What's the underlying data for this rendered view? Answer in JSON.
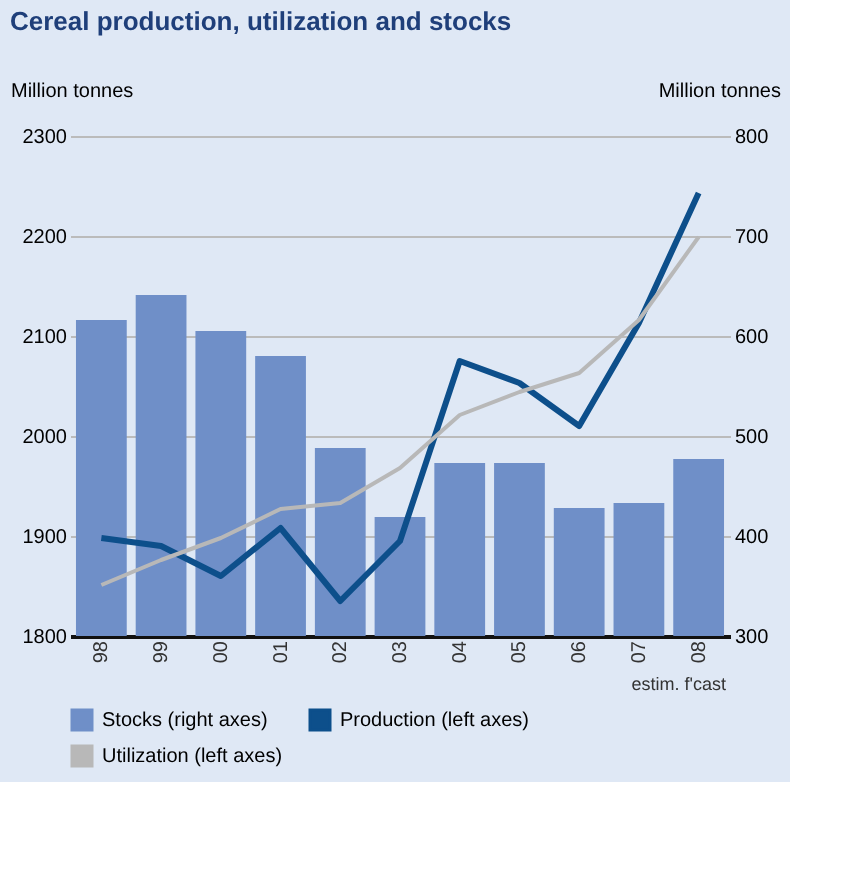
{
  "chart_data": {
    "type": "bar",
    "title": "Cereal production, utilization and stocks",
    "ylabel": "Million tonnes",
    "y2label": "Million tonnes",
    "categories": [
      "98",
      "99",
      "00",
      "01",
      "02",
      "03",
      "04",
      "05",
      "06",
      "07",
      "08"
    ],
    "series": [
      {
        "name": "Stocks (right axes)",
        "axis": "y2",
        "color": "#6f8fc8",
        "values": [
          616,
          641,
          605,
          580,
          488,
          419,
          473,
          473,
          428,
          433,
          477
        ]
      },
      {
        "name": "Production (left axes)",
        "type": "line",
        "color": "#0d4f8b",
        "values": [
          1898,
          1890,
          1860,
          1908,
          1835,
          1895,
          2075,
          2053,
          2010,
          2113,
          2243
        ]
      },
      {
        "name": "Utilization (left axes)",
        "type": "line",
        "color": "#b8b8b8",
        "values": [
          1851,
          1876,
          1898,
          1927,
          1933,
          1968,
          2021,
          2044,
          2063,
          2116,
          2199
        ]
      }
    ],
    "ylim": [
      1800,
      2300
    ],
    "yticks": [
      1800,
      1900,
      2000,
      2100,
      2200,
      2300
    ],
    "y2lim": [
      300,
      800
    ],
    "y2ticks": [
      300,
      400,
      500,
      600,
      700,
      800
    ],
    "grid": "y",
    "legend": "bottom",
    "annotations": [
      "estim.",
      "f'cast"
    ]
  }
}
